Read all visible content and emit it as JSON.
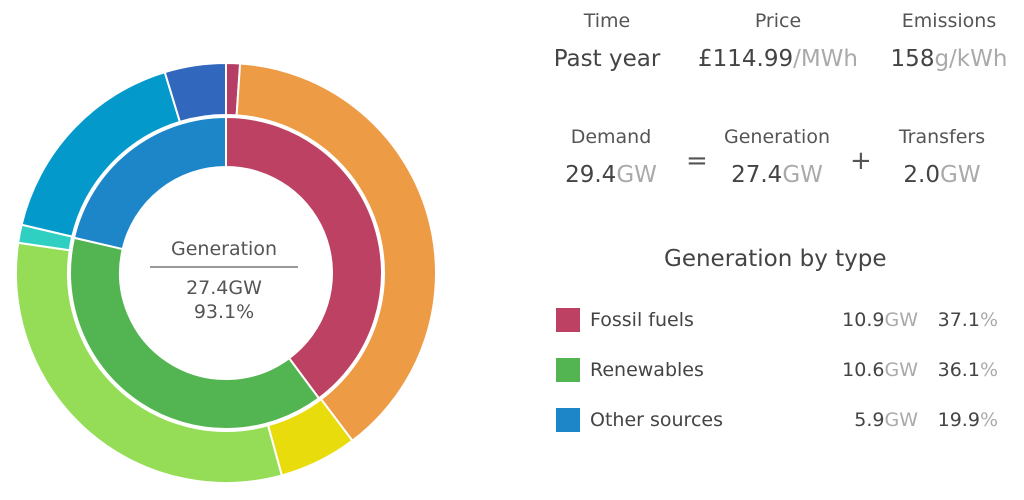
{
  "center": {
    "label": "Generation",
    "value": "27.4GW",
    "percent": "93.1%"
  },
  "stats": {
    "time": {
      "label": "Time",
      "value": "Past year"
    },
    "price": {
      "label": "Price",
      "value": "£114.99",
      "unit": "/MWh"
    },
    "emissions": {
      "label": "Emissions",
      "value": "158",
      "unit": "g/kWh"
    }
  },
  "balance": {
    "demand": {
      "label": "Demand",
      "value": "29.4",
      "unit": "GW"
    },
    "equals": "=",
    "generation": {
      "label": "Generation",
      "value": "27.4",
      "unit": "GW"
    },
    "plus": "+",
    "transfers": {
      "label": "Transfers",
      "value": "2.0",
      "unit": "GW"
    }
  },
  "legend": {
    "title": "Generation by type",
    "rows": [
      {
        "name": "Fossil fuels",
        "gw": "10.9",
        "gw_unit": "GW",
        "pct": "37.1",
        "pct_unit": "%",
        "color": "#bd4163"
      },
      {
        "name": "Renewables",
        "gw": "10.6",
        "gw_unit": "GW",
        "pct": "36.1",
        "pct_unit": "%",
        "color": "#53b551"
      },
      {
        "name": "Other sources",
        "gw": "5.9",
        "gw_unit": "GW",
        "pct": "19.9",
        "pct_unit": "%",
        "color": "#1d86c9"
      }
    ]
  },
  "chart_data": {
    "type": "pie",
    "style": "nested donut",
    "inner_ring": [
      {
        "group": "Fossil fuels",
        "value": 37.1,
        "color": "#bd4163"
      },
      {
        "group": "Renewables",
        "value": 36.1,
        "color": "#53b551"
      },
      {
        "group": "Other sources",
        "value": 19.9,
        "color": "#1d86c9"
      }
    ],
    "outer_ring": [
      {
        "value": 1.0,
        "color": "#b63e66"
      },
      {
        "value": 36.1,
        "color": "#ed9b45"
      },
      {
        "value": 5.6,
        "color": "#e9dc0c"
      },
      {
        "value": 29.5,
        "color": "#95dd57"
      },
      {
        "value": 1.3,
        "color": "#2fd0c2"
      },
      {
        "value": 15.5,
        "color": "#0399cb"
      },
      {
        "value": 4.4,
        "color": "#3167bd"
      }
    ]
  }
}
